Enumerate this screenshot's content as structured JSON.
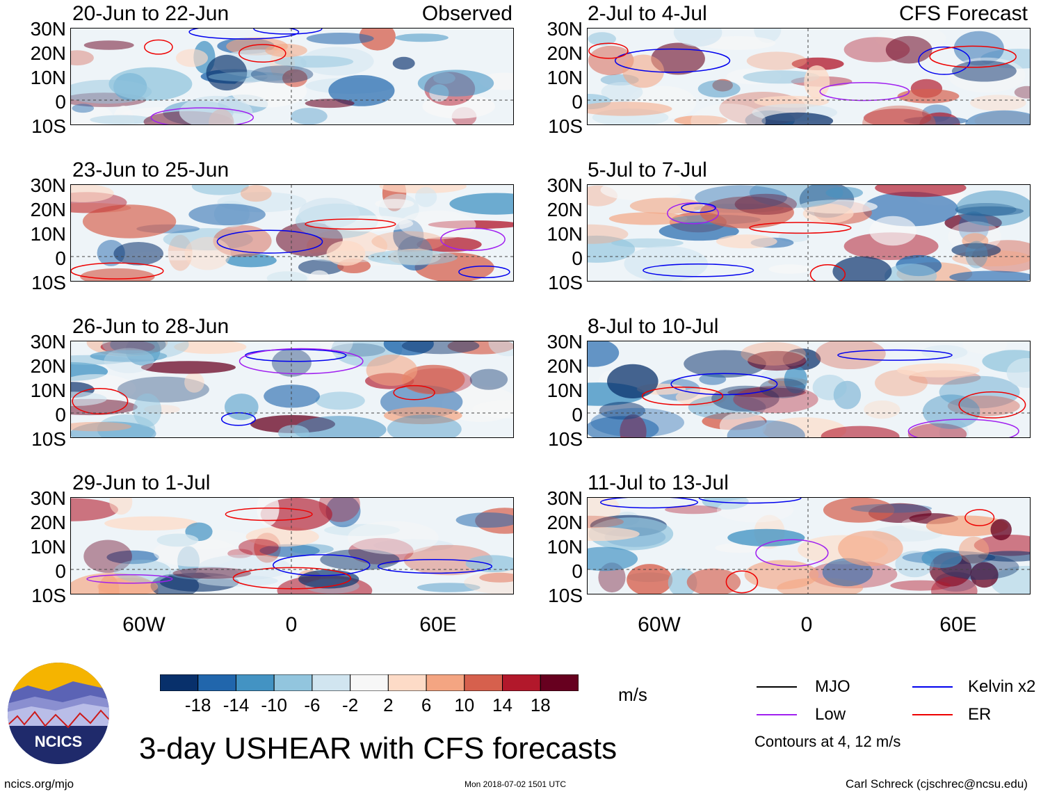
{
  "panels": {
    "obs": [
      {
        "title": "20-Jun to 22-Jun",
        "tag": "Observed"
      },
      {
        "title": "23-Jun to 25-Jun",
        "tag": ""
      },
      {
        "title": "26-Jun to 28-Jun",
        "tag": ""
      },
      {
        "title": "29-Jun to 1-Jul",
        "tag": ""
      }
    ],
    "fcst": [
      {
        "title": "2-Jul to 4-Jul",
        "tag": "CFS Forecast"
      },
      {
        "title": "5-Jul to 7-Jul",
        "tag": ""
      },
      {
        "title": "8-Jul to 10-Jul",
        "tag": ""
      },
      {
        "title": "11-Jul to 13-Jul",
        "tag": ""
      }
    ]
  },
  "latitude_labels": [
    "30N",
    "20N",
    "10N",
    "0",
    "10S"
  ],
  "longitude_labels": [
    "60W",
    "0",
    "60E"
  ],
  "colorbar": {
    "labels": [
      "-18",
      "-14",
      "-10",
      "-6",
      "-2",
      "2",
      "6",
      "10",
      "14",
      "18"
    ],
    "colors": [
      "#08306b",
      "#2166ac",
      "#4393c3",
      "#92c5de",
      "#d1e5f0",
      "#f7f7f7",
      "#fddbc7",
      "#f4a582",
      "#d6604d",
      "#b2182b",
      "#67001f"
    ],
    "units": "m/s"
  },
  "legend": {
    "mjo": {
      "label": "MJO",
      "color": "#000000"
    },
    "kelvin": {
      "label": "Kelvin x2",
      "color": "#0000ee"
    },
    "low": {
      "label": "Low",
      "color": "#a020f0"
    },
    "er": {
      "label": "ER",
      "color": "#ee0000"
    },
    "contours_note": "Contours at 4, 12 m/s"
  },
  "main_title": "3-day USHEAR with CFS forecasts",
  "logo_text": "NCICS",
  "footer": {
    "url": "ncics.org/mjo",
    "timestamp": "Mon 2018-07-02 1501 UTC",
    "credit": "Carl Schreck (cjschrec@ncsu.edu)"
  }
}
